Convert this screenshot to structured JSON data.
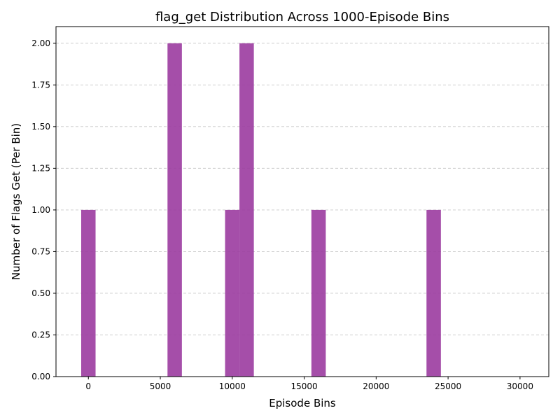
{
  "chart_data": {
    "type": "bar",
    "title": "flag_get Distribution Across 1000-Episode Bins",
    "xlabel": "Episode Bins",
    "ylabel": "Number of Flags Get (Per Bin)",
    "bar_color": "#9b3ba0",
    "grid_color": "#c8c8c8",
    "bin_width": 1000,
    "xlim": [
      -2250,
      32000
    ],
    "ylim": [
      0,
      2.1
    ],
    "grid": "y-dashed",
    "x": [
      0,
      6000,
      10000,
      11000,
      16000,
      24000
    ],
    "values": [
      1,
      2,
      1,
      2,
      1,
      1
    ],
    "xticks": [
      0,
      5000,
      10000,
      15000,
      20000,
      25000,
      30000
    ],
    "yticks": [
      0.0,
      0.25,
      0.5,
      0.75,
      1.0,
      1.25,
      1.5,
      1.75,
      2.0
    ],
    "xtick_labels": [
      "0",
      "5000",
      "10000",
      "15000",
      "20000",
      "25000",
      "30000"
    ],
    "ytick_labels": [
      "0.00",
      "0.25",
      "0.50",
      "0.75",
      "1.00",
      "1.25",
      "1.50",
      "1.75",
      "2.00"
    ]
  }
}
